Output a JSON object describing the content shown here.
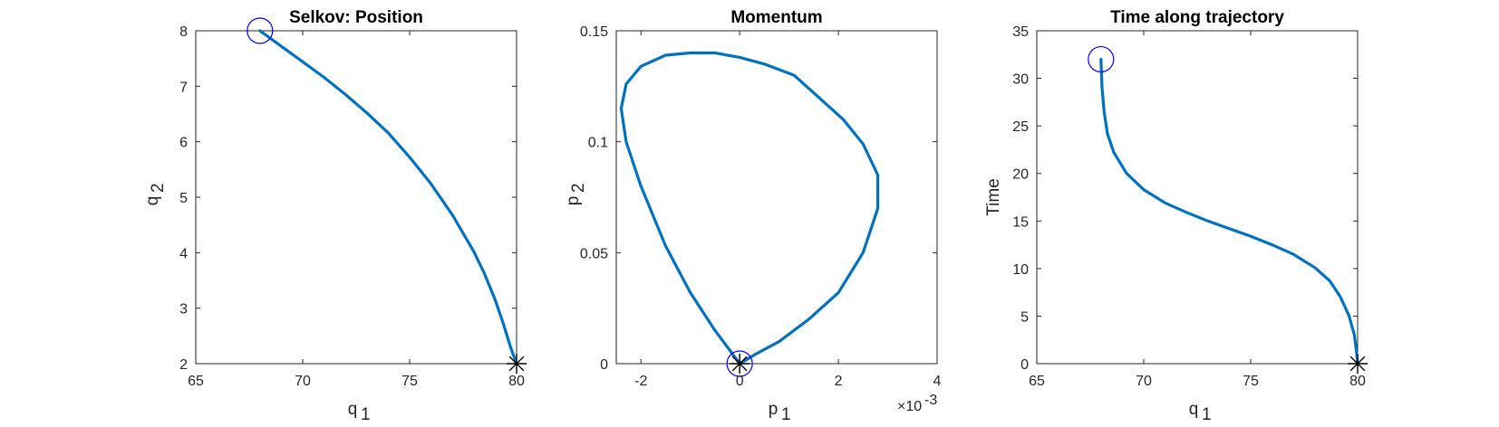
{
  "colors": {
    "curve": "#0072BD",
    "start_marker": "#0000FF",
    "end_marker": "#000000",
    "grid": "#dfdfdf",
    "axes": "#262626"
  },
  "chart_data": [
    {
      "type": "line",
      "title": "Selkov: Position",
      "xlabel": "q",
      "xlabel_sub": "1",
      "ylabel": "q",
      "ylabel_sub": "2",
      "xlim": [
        65,
        80
      ],
      "ylim": [
        2,
        8
      ],
      "xticks": [
        65,
        70,
        75,
        80
      ],
      "yticks": [
        2,
        3,
        4,
        5,
        6,
        7,
        8
      ],
      "grid": true,
      "series": [
        {
          "x": [
            68.0,
            69.0,
            70.0,
            71.0,
            72.0,
            73.0,
            74.0,
            75.0,
            76.0,
            77.0,
            78.0,
            78.5,
            79.0,
            79.4,
            79.7,
            80.0
          ],
          "y": [
            8.0,
            7.72,
            7.44,
            7.16,
            6.85,
            6.52,
            6.16,
            5.72,
            5.24,
            4.68,
            4.02,
            3.62,
            3.15,
            2.7,
            2.32,
            2.0
          ]
        }
      ],
      "start_marker": {
        "x": 68.0,
        "y": 8.0,
        "shape": "circle"
      },
      "end_marker": {
        "x": 80.0,
        "y": 2.0,
        "shape": "asterisk"
      }
    },
    {
      "type": "line",
      "title": "Momentum",
      "xlabel": "p",
      "xlabel_sub": "1",
      "ylabel": "p",
      "ylabel_sub": "2",
      "xlim": [
        -0.0025,
        0.004
      ],
      "ylim": [
        0,
        0.15
      ],
      "xticks": [
        -0.002,
        0,
        0.002,
        0.004
      ],
      "xticklabels": [
        "-2",
        "0",
        "2",
        "4"
      ],
      "x_exponent_label": "×10",
      "x_exponent": "-3",
      "yticks": [
        0,
        0.05,
        0.1,
        0.15
      ],
      "yticklabels": [
        "0",
        "0.05",
        "0.1",
        "0.15"
      ],
      "grid": true,
      "series": [
        {
          "x": [
            0.0,
            -0.0005,
            -0.001,
            -0.0015,
            -0.002,
            -0.0023,
            -0.0024,
            -0.0023,
            -0.002,
            -0.0015,
            -0.001,
            -0.0005,
            0.0,
            0.0005,
            0.0011,
            0.0016,
            0.0021,
            0.0025,
            0.0028,
            0.0028,
            0.0025,
            0.002,
            0.0014,
            0.0008,
            0.0003,
            0.0
          ],
          "y": [
            0.0,
            0.015,
            0.032,
            0.053,
            0.08,
            0.1,
            0.115,
            0.126,
            0.134,
            0.139,
            0.14,
            0.14,
            0.138,
            0.135,
            0.13,
            0.12,
            0.11,
            0.099,
            0.085,
            0.07,
            0.05,
            0.032,
            0.02,
            0.01,
            0.004,
            0.0
          ]
        }
      ],
      "start_marker": {
        "x": 0.0,
        "y": 0.0,
        "shape": "circle"
      },
      "end_marker": {
        "x": 0.0,
        "y": 0.0,
        "shape": "asterisk"
      }
    },
    {
      "type": "line",
      "title": "Time along trajectory",
      "xlabel": "q",
      "xlabel_sub": "1",
      "ylabel": "Time",
      "ylabel_sub": "",
      "xlim": [
        65,
        80
      ],
      "ylim": [
        0,
        35
      ],
      "xticks": [
        65,
        70,
        75,
        80
      ],
      "yticks": [
        0,
        5,
        10,
        15,
        20,
        25,
        30,
        35
      ],
      "grid": true,
      "series": [
        {
          "x": [
            68.0,
            68.05,
            68.15,
            68.3,
            68.6,
            69.2,
            70.0,
            71.0,
            72.0,
            73.0,
            74.0,
            75.0,
            76.0,
            77.0,
            78.0,
            78.7,
            79.2,
            79.6,
            79.85,
            79.95,
            80.0
          ],
          "y": [
            32.0,
            29.0,
            26.5,
            24.2,
            22.2,
            20.0,
            18.3,
            16.9,
            15.9,
            15.0,
            14.2,
            13.4,
            12.5,
            11.5,
            10.1,
            8.7,
            7.0,
            5.0,
            3.0,
            1.2,
            0.0
          ]
        }
      ],
      "start_marker": {
        "x": 68.0,
        "y": 32.0,
        "shape": "circle"
      },
      "end_marker": {
        "x": 80.0,
        "y": 0.0,
        "shape": "asterisk"
      }
    }
  ]
}
